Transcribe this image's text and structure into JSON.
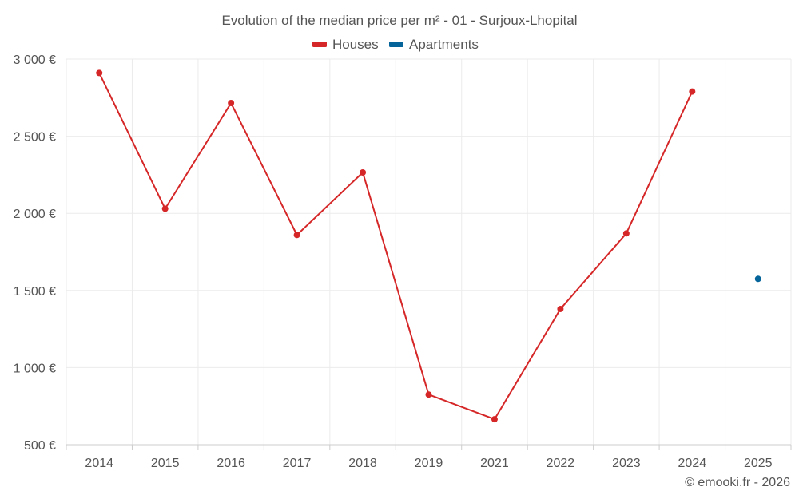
{
  "chart_data": {
    "type": "line",
    "title": "Evolution of the median price per m² - 01 - Surjoux-Lhopital",
    "categories": [
      "2014",
      "2015",
      "2016",
      "2017",
      "2018",
      "2019",
      "2021",
      "2022",
      "2023",
      "2024",
      "2025"
    ],
    "series": [
      {
        "name": "Houses",
        "color": "#d62728",
        "values": [
          2910,
          2030,
          2715,
          1860,
          2265,
          825,
          665,
          1380,
          1870,
          2790,
          null
        ]
      },
      {
        "name": "Apartments",
        "color": "#05659a",
        "values": [
          null,
          null,
          null,
          null,
          null,
          null,
          null,
          null,
          null,
          null,
          1575
        ]
      }
    ],
    "ylim": [
      500,
      3000
    ],
    "yticks": [
      500,
      1000,
      1500,
      2000,
      2500,
      3000
    ],
    "ytick_labels": [
      "500 €",
      "1 000 €",
      "1 500 €",
      "2 000 €",
      "2 500 €",
      "3 000 €"
    ],
    "xlabel": "",
    "ylabel": "",
    "grid": true,
    "legend_position": "top-center"
  },
  "credit": "© emooki.fr - 2026"
}
